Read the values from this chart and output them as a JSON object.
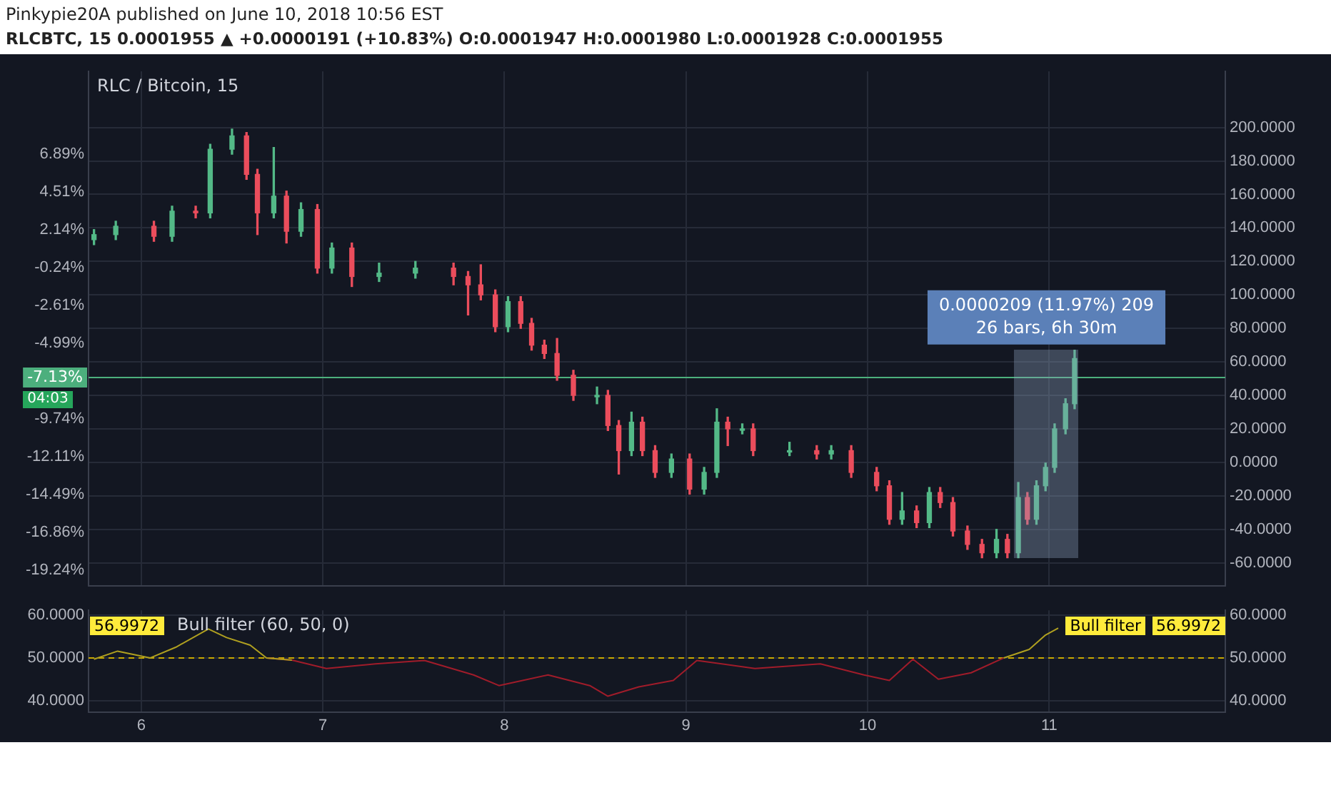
{
  "chart_data": [
    {
      "type": "candlestick",
      "title": "RLC / Bitcoin, 15",
      "annotations": [
        "Pinkypie20A published on June 10, 2018 10:56 EST",
        "RLCBTC, 15 0.0001955 ▲ +0.0000191 (+10.83%) O:0.0001947 H:0.0001980 L:0.0001928 C:0.0001955",
        "04:03",
        "0.0000209 (11.97%) 209",
        "26 bars, 6h 30m"
      ],
      "x": [
        5.74,
        5.86,
        6.07,
        6.17,
        6.3,
        6.38,
        6.5,
        6.58,
        6.64,
        6.73,
        6.8,
        6.88,
        6.97,
        7.05,
        7.16,
        7.31,
        7.51,
        7.72,
        7.8,
        7.87,
        7.95,
        8.02,
        8.09,
        8.15,
        8.22,
        8.29,
        8.38,
        8.51,
        8.57,
        8.63,
        8.7,
        8.76,
        8.83,
        8.92,
        9.02,
        9.1,
        9.17,
        9.23,
        9.31,
        9.37,
        9.57,
        9.72,
        9.8,
        9.91,
        10.05,
        10.12,
        10.19,
        10.27,
        10.34,
        10.4,
        10.47,
        10.55,
        10.63,
        10.71,
        10.77,
        10.83,
        10.88,
        10.93,
        10.98,
        11.03,
        11.09,
        11.14
      ],
      "ohlc": [
        [
          133,
          139,
          130,
          136
        ],
        [
          136,
          144,
          133,
          141
        ],
        [
          141,
          144,
          132,
          135
        ],
        [
          135,
          153,
          132,
          150
        ],
        [
          150,
          153,
          146,
          149
        ],
        [
          149,
          190,
          146,
          187
        ],
        [
          187,
          199,
          184,
          195
        ],
        [
          195,
          197,
          169,
          172
        ],
        [
          172,
          175,
          136,
          149
        ],
        [
          149,
          188,
          146,
          159
        ],
        [
          159,
          162,
          131,
          138
        ],
        [
          138,
          155,
          135,
          151
        ],
        [
          151,
          154,
          113,
          116
        ],
        [
          116,
          131,
          113,
          128
        ],
        [
          128,
          131,
          105,
          111
        ],
        [
          111,
          119,
          108,
          113
        ],
        [
          113,
          120,
          110,
          116
        ],
        [
          116,
          119,
          106,
          111
        ],
        [
          111,
          114,
          88,
          106
        ],
        [
          106,
          118,
          97,
          100
        ],
        [
          100,
          103,
          78,
          81
        ],
        [
          81,
          99,
          78,
          96
        ],
        [
          96,
          99,
          80,
          83
        ],
        [
          83,
          86,
          67,
          70
        ],
        [
          70,
          73,
          62,
          65
        ],
        [
          65,
          74,
          49,
          52
        ],
        [
          52,
          55,
          37,
          40
        ],
        [
          40,
          45,
          35,
          40
        ],
        [
          40,
          43,
          19,
          22
        ],
        [
          22,
          25,
          -7,
          7
        ],
        [
          7,
          30,
          4,
          24
        ],
        [
          24,
          27,
          4,
          7
        ],
        [
          7,
          10,
          -9,
          -6
        ],
        [
          -6,
          5,
          -9,
          2
        ],
        [
          2,
          5,
          -19,
          -16
        ],
        [
          -16,
          -3,
          -19,
          -6
        ],
        [
          -6,
          32,
          -9,
          24
        ],
        [
          24,
          27,
          10,
          20
        ],
        [
          20,
          23,
          17,
          20
        ],
        [
          20,
          23,
          4,
          7
        ],
        [
          7,
          12,
          4,
          7
        ],
        [
          7,
          10,
          2,
          5
        ],
        [
          5,
          10,
          2,
          7
        ],
        [
          7,
          10,
          -9,
          -6
        ],
        [
          -6,
          -3,
          -17,
          -14
        ],
        [
          -14,
          -11,
          -37,
          -34
        ],
        [
          -34,
          -18,
          -37,
          -29
        ],
        [
          -29,
          -26,
          -39,
          -36
        ],
        [
          -36,
          -15,
          -39,
          -18
        ],
        [
          -18,
          -15,
          -27,
          -24
        ],
        [
          -24,
          -21,
          -44,
          -41
        ],
        [
          -41,
          -38,
          -52,
          -49
        ],
        [
          -49,
          -46,
          -57,
          -54
        ],
        [
          -54,
          -40,
          -57,
          -46
        ],
        [
          -46,
          -43,
          -57,
          -54
        ],
        [
          -54,
          -12,
          -57,
          -21
        ],
        [
          -21,
          -18,
          -37,
          -34
        ],
        [
          -34,
          -11,
          -37,
          -14
        ],
        [
          -14,
          0,
          -17,
          -3
        ],
        [
          -3,
          23,
          -6,
          20
        ],
        [
          20,
          38,
          17,
          35
        ],
        [
          35,
          67,
          32,
          62
        ]
      ],
      "xlim": [
        5.71,
        11.97
      ],
      "xticks": [
        6,
        7,
        8,
        9,
        10,
        11
      ],
      "ylim": [
        -73.7,
        233.5
      ],
      "yticks": [
        {
          "value": -60,
          "label": "-60.0000"
        },
        {
          "value": -40,
          "label": "-40.0000"
        },
        {
          "value": -20,
          "label": "-20.0000"
        },
        {
          "value": 0,
          "label": "0.0000"
        },
        {
          "value": 20,
          "label": "20.0000"
        },
        {
          "value": 40,
          "label": "40.0000"
        },
        {
          "value": 60,
          "label": "60.0000"
        },
        {
          "value": 80,
          "label": "80.0000"
        },
        {
          "value": 100,
          "label": "100.0000"
        },
        {
          "value": 120,
          "label": "120.0000"
        },
        {
          "value": 140,
          "label": "140.0000"
        },
        {
          "value": 160,
          "label": "160.0000"
        },
        {
          "value": 180,
          "label": "180.0000"
        },
        {
          "value": 200,
          "label": "200.0000"
        }
      ],
      "y2lim": [
        -20.2,
        12.09
      ],
      "y2ticks": [
        {
          "value": 6.89,
          "label": "6.89%"
        },
        {
          "value": 4.51,
          "label": "4.51%"
        },
        {
          "value": 2.14,
          "label": "2.14%"
        },
        {
          "value": -0.24,
          "label": "-0.24%"
        },
        {
          "value": -2.61,
          "label": "-2.61%"
        },
        {
          "value": -4.99,
          "label": "-4.99%"
        },
        {
          "value": -9.74,
          "label": "-9.74%"
        },
        {
          "value": -12.11,
          "label": "-12.11%"
        },
        {
          "value": -14.49,
          "label": "-14.49%"
        },
        {
          "value": -16.86,
          "label": "-16.86%"
        },
        {
          "value": -19.24,
          "label": "-19.24%"
        }
      ],
      "ref_lines": [
        {
          "axis": "y2",
          "value": -7.13,
          "label": "-7.13%",
          "color": "#4caf7d"
        }
      ],
      "tick_labels": "y",
      "grid": true,
      "legend": false
    },
    {
      "type": "line",
      "title": "Bull filter (60, 50, 0)",
      "annotations": [
        "Bull filter",
        "56.9972",
        "56.9972"
      ],
      "series": [
        {
          "color": "#b0a020",
          "x": [
            5.74,
            5.87,
            6.05,
            6.19,
            6.37,
            6.47,
            6.6,
            6.69,
            6.83,
            9.98,
            10.75,
            10.89,
            10.98,
            11.05
          ],
          "values": [
            49.7,
            51.6,
            50,
            52.5,
            56.8,
            54.8,
            53,
            50,
            49.5,
            null,
            50,
            52,
            55.4,
            57
          ]
        },
        {
          "color": "#a01c2a",
          "x": [
            6.69,
            6.83,
            7.02,
            7.29,
            7.56,
            7.83,
            7.97,
            8.24,
            8.47,
            8.57,
            8.74,
            8.93,
            9.06,
            9.38,
            9.74,
            9.98,
            10.12,
            10.25,
            10.39,
            10.57,
            10.75
          ],
          "values": [
            50,
            49.5,
            47.5,
            48.6,
            49.4,
            46,
            43.5,
            46,
            43.5,
            41,
            43.2,
            44.7,
            49.4,
            47.5,
            48.6,
            46,
            44.7,
            49.7,
            45,
            46.5,
            50
          ]
        }
      ],
      "xlim": [
        5.71,
        11.97
      ],
      "xticks": [
        6,
        7,
        8,
        9,
        10,
        11
      ],
      "ylim": [
        37.3,
        61.2
      ],
      "yticks": [
        {
          "value": 40,
          "label": "40.0000"
        },
        {
          "value": 50,
          "label": "50.0000"
        },
        {
          "value": 60,
          "label": "60.0000"
        }
      ],
      "y2lim": [
        37.3,
        61.2
      ],
      "y2ticks": [
        {
          "value": 40,
          "label": "40.0000"
        },
        {
          "value": 50,
          "label": "50.0000"
        },
        {
          "value": 60,
          "label": "60.0000"
        }
      ],
      "ref_lines": [
        {
          "axis": "y",
          "value": 50,
          "color": "#c8a800",
          "line_style": "dashed"
        }
      ],
      "marker": "none",
      "grid": true,
      "legend": false
    }
  ]
}
